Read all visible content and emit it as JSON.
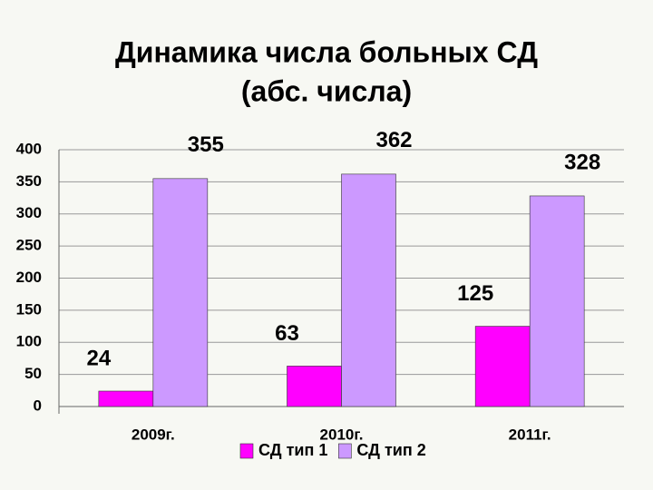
{
  "chart_data": {
    "type": "bar",
    "title": "Динамика числа больных СД",
    "subtitle": "(абс. числа)",
    "categories": [
      "2009г.",
      "2010г.",
      "2011г."
    ],
    "series": [
      {
        "name": "СД тип 1",
        "color": "#ff00ff",
        "values": [
          24,
          63,
          125
        ]
      },
      {
        "name": "СД тип 2",
        "color": "#cc99ff",
        "values": [
          355,
          362,
          328
        ]
      }
    ],
    "ylim": [
      0,
      400
    ],
    "yticks": [
      0,
      50,
      100,
      150,
      200,
      250,
      300,
      350,
      400
    ],
    "grid": true,
    "legend": "bottom"
  }
}
